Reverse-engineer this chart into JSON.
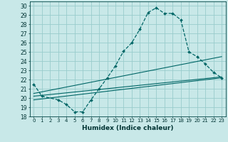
{
  "xlabel": "Humidex (Indice chaleur)",
  "bg_color": "#c8e8e8",
  "grid_color": "#99cccc",
  "line_color": "#006666",
  "xlim": [
    -0.5,
    23.5
  ],
  "ylim": [
    18,
    30.5
  ],
  "xticks": [
    0,
    1,
    2,
    3,
    4,
    5,
    6,
    7,
    8,
    9,
    10,
    11,
    12,
    13,
    14,
    15,
    16,
    17,
    18,
    19,
    20,
    21,
    22,
    23
  ],
  "yticks": [
    18,
    19,
    20,
    21,
    22,
    23,
    24,
    25,
    26,
    27,
    28,
    29,
    30
  ],
  "curve_x": [
    0,
    1,
    3,
    4,
    5,
    6,
    7,
    8,
    9,
    10,
    11,
    12,
    13,
    14,
    15,
    16,
    17,
    18,
    19,
    20,
    21,
    22,
    23
  ],
  "curve_y": [
    21.5,
    20.2,
    19.8,
    19.3,
    18.5,
    18.5,
    19.8,
    21.0,
    22.2,
    23.5,
    25.1,
    26.0,
    27.5,
    29.3,
    29.8,
    29.2,
    29.2,
    28.5,
    25.0,
    24.5,
    23.7,
    22.8,
    22.2
  ],
  "line1_x": [
    0,
    23
  ],
  "line1_y": [
    20.5,
    24.5
  ],
  "line2_x": [
    0,
    23
  ],
  "line2_y": [
    20.2,
    22.3
  ],
  "line3_x": [
    0,
    23
  ],
  "line3_y": [
    19.8,
    22.2
  ]
}
